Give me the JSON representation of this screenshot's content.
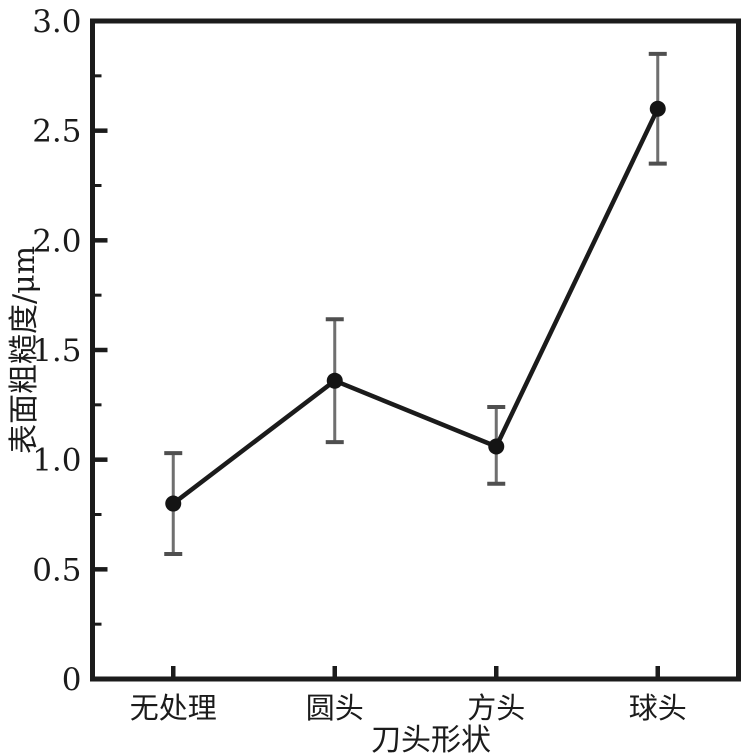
{
  "figure": {
    "background": "#ffffff"
  },
  "chart_data": {
    "type": "line",
    "title": "",
    "xlabel": "刀头形状",
    "ylabel": "表面粗糙度/μm",
    "categories": [
      "无处理",
      "圆头",
      "方头",
      "球头"
    ],
    "values": [
      0.8,
      1.36,
      1.06,
      2.6
    ],
    "error_low": [
      0.57,
      1.08,
      0.89,
      2.35
    ],
    "error_high": [
      1.03,
      1.64,
      1.24,
      2.85
    ],
    "ylim": [
      0,
      3.0
    ],
    "y_major_step": 0.5,
    "y_minor_step": 0.25,
    "y_tick_labels": [
      "0",
      "0.5",
      "1.0",
      "1.5",
      "2.0",
      "2.5",
      "3.0"
    ],
    "grid": false,
    "legend": "none",
    "marker": "filled-circle",
    "colors": {
      "line": "#1b1b1b",
      "marker": "#141414",
      "error_bar": "#6f6f6f",
      "error_cap": "#4f4f4f",
      "axis": "#1b1b1b",
      "text": "#1b1b1b"
    }
  }
}
